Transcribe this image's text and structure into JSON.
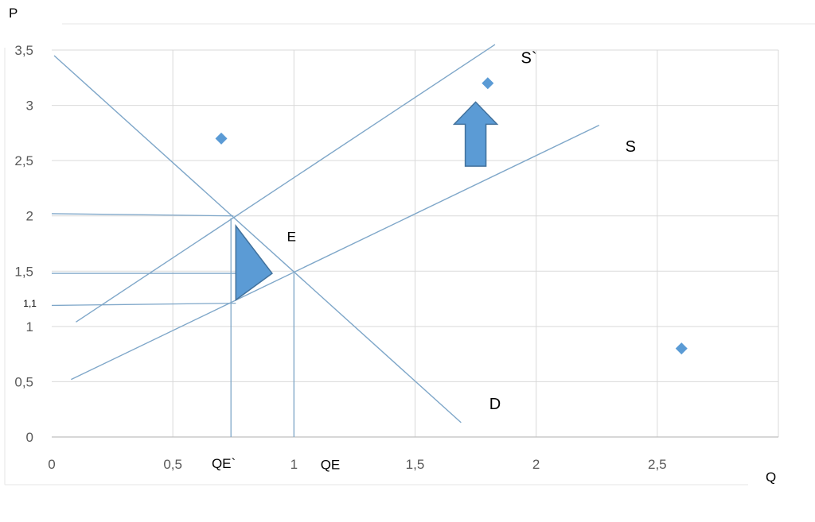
{
  "chart_data": {
    "type": "scatter",
    "title": "",
    "xlabel": "Q",
    "ylabel": "P",
    "xlim": [
      0,
      3
    ],
    "ylim": [
      0,
      3.5
    ],
    "x_ticks": [
      {
        "value": 0,
        "label": "0"
      },
      {
        "value": 0.5,
        "label": "0,5"
      },
      {
        "value": 1,
        "label": "1"
      },
      {
        "value": 1.5,
        "label": "1,5"
      },
      {
        "value": 2,
        "label": "2"
      },
      {
        "value": 2.5,
        "label": "2,5"
      }
    ],
    "y_ticks": [
      {
        "value": 0,
        "label": "0"
      },
      {
        "value": 0.5,
        "label": "0,5"
      },
      {
        "value": 1,
        "label": "1"
      },
      {
        "value": 1.5,
        "label": "1,5"
      },
      {
        "value": 2,
        "label": "2"
      },
      {
        "value": 2.5,
        "label": "2,5"
      },
      {
        "value": 3,
        "label": "3"
      },
      {
        "value": 3.5,
        "label": "3,5"
      }
    ],
    "grid": true,
    "points": [
      {
        "x": 0.7,
        "y": 2.7
      },
      {
        "x": 1.8,
        "y": 3.2
      },
      {
        "x": 2.6,
        "y": 0.8
      }
    ],
    "lines": [
      {
        "name": "D",
        "x": [
          0.01,
          1.69
        ],
        "y": [
          3.45,
          0.13
        ]
      },
      {
        "name": "S",
        "x": [
          0.08,
          2.26
        ],
        "y": [
          0.52,
          2.82
        ]
      },
      {
        "name": "S`",
        "x": [
          0.1,
          1.83
        ],
        "y": [
          1.04,
          3.55
        ]
      }
    ],
    "guides": [
      {
        "x": [
          0,
          0.75
        ],
        "y": [
          2.02,
          2.0
        ]
      },
      {
        "x": [
          0,
          0.76
        ],
        "y": [
          1.48,
          1.48
        ]
      },
      {
        "x": [
          0,
          0.76
        ],
        "y": [
          1.19,
          1.21
        ]
      },
      {
        "x": [
          0.74,
          0.74
        ],
        "y": [
          0,
          1.98
        ]
      },
      {
        "x": [
          1.0,
          1.0
        ],
        "y": [
          0,
          1.48
        ]
      }
    ],
    "annotations": [
      {
        "text": "S`",
        "x": 1.97,
        "y": 3.38
      },
      {
        "text": "S",
        "x": 2.39,
        "y": 2.58
      },
      {
        "text": "E",
        "x": 0.99,
        "y": 1.77
      },
      {
        "text": "D",
        "x": 1.83,
        "y": 0.25
      },
      {
        "text": "QE`",
        "x": 0.71,
        "y": -0.28
      },
      {
        "text": "QE",
        "x": 1.15,
        "y": -0.29
      },
      {
        "text": "1,1",
        "x": -0.09,
        "y": 1.18
      }
    ],
    "shapes": [
      {
        "name": "up-arrow",
        "x": 1.75,
        "y_from": 2.45,
        "y_to": 3.03
      },
      {
        "name": "triangle",
        "points": [
          [
            0.76,
            1.91
          ],
          [
            0.91,
            1.48
          ],
          [
            0.76,
            1.24
          ]
        ]
      }
    ],
    "colors": {
      "line": "#7fa7c9",
      "marker": "#5b9bd5",
      "shape_fill": "#5b9bd5",
      "shape_stroke": "#41719c",
      "grid": "#d9d9d9",
      "axis": "#bfbfbf"
    }
  }
}
